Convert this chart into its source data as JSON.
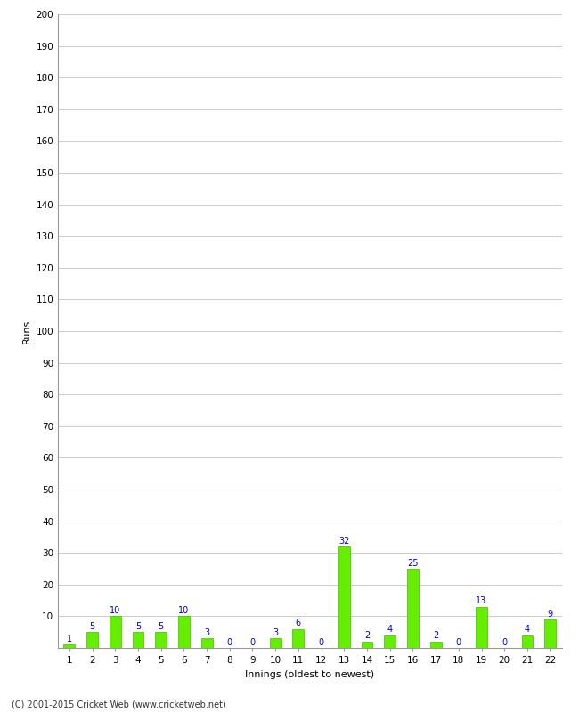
{
  "title": "",
  "xlabel": "Innings (oldest to newest)",
  "ylabel": "Runs",
  "background_color": "#ffffff",
  "bar_color": "#66ee00",
  "bar_edge_color": "#44bb00",
  "label_color": "#0000cc",
  "categories": [
    "1",
    "2",
    "3",
    "4",
    "5",
    "6",
    "7",
    "8",
    "9",
    "10",
    "11",
    "12",
    "13",
    "14",
    "15",
    "16",
    "17",
    "18",
    "19",
    "20",
    "21",
    "22"
  ],
  "values": [
    1,
    5,
    10,
    5,
    5,
    10,
    3,
    0,
    0,
    3,
    6,
    0,
    32,
    2,
    4,
    25,
    2,
    0,
    13,
    0,
    4,
    9
  ],
  "ylim": [
    0,
    200
  ],
  "yticks": [
    0,
    10,
    20,
    30,
    40,
    50,
    60,
    70,
    80,
    90,
    100,
    110,
    120,
    130,
    140,
    150,
    160,
    170,
    180,
    190,
    200
  ],
  "grid_color": "#cccccc",
  "footer": "(C) 2001-2015 Cricket Web (www.cricketweb.net)",
  "axis_label_fontsize": 8,
  "tick_fontsize": 7.5,
  "value_label_fontsize": 7,
  "bar_width": 0.5
}
